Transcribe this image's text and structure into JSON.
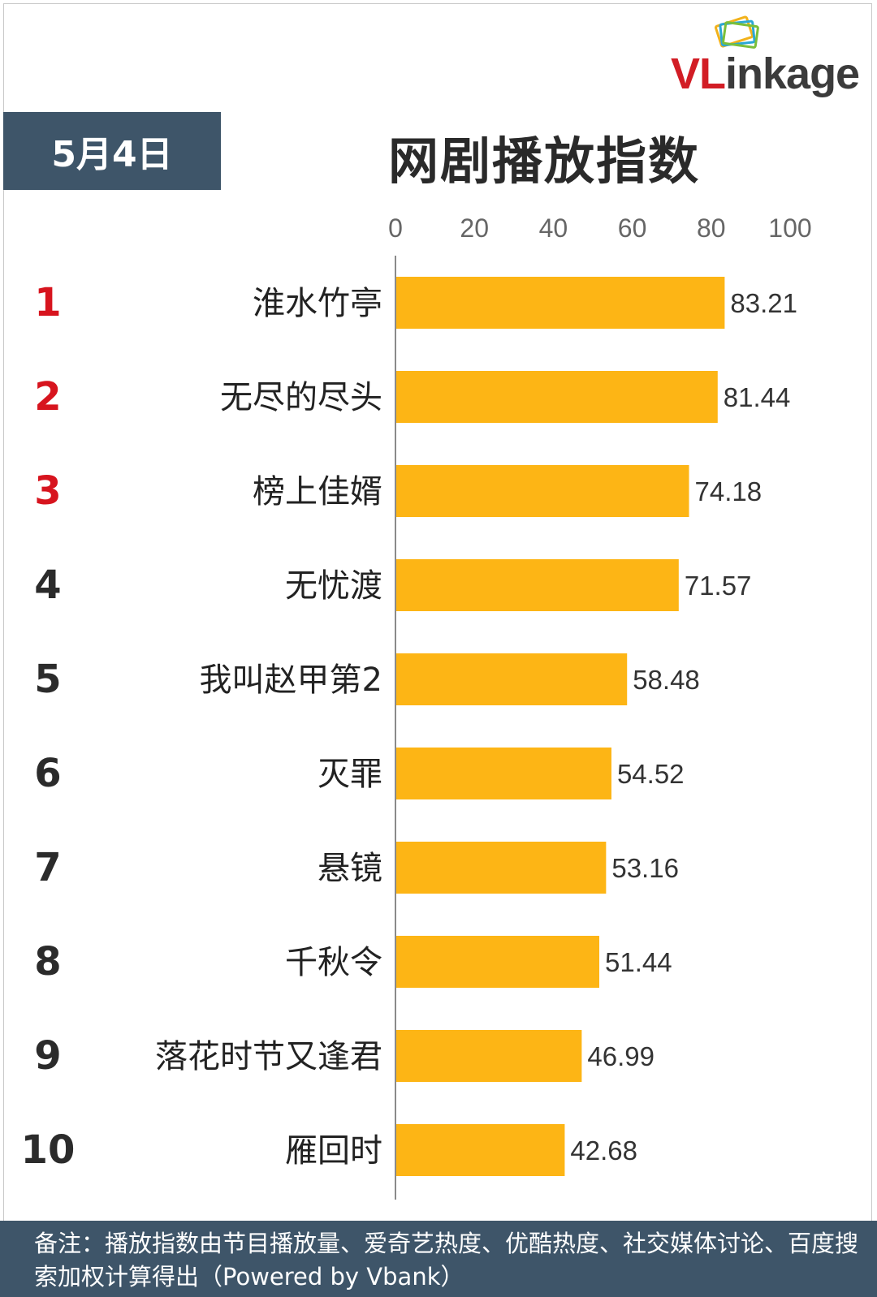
{
  "header": {
    "logo_text_red": "VL",
    "logo_text_dark": "inkage",
    "date": "5月4日",
    "title": "网剧播放指数"
  },
  "footer": {
    "note": "备注：播放指数由节目播放量、爱奇艺热度、优酷热度、社交媒体讨论、百度搜索加权计算得出（Powered by Vbank）"
  },
  "colors": {
    "bar": "#FDB515",
    "rank_top": "#D7141E",
    "rank_other": "#2B2B2B",
    "header_bg": "#3E5569"
  },
  "chart_data": {
    "type": "bar",
    "orientation": "horizontal",
    "title": "网剧播放指数",
    "xlim": [
      0,
      100
    ],
    "x_ticks": [
      "0",
      "20",
      "40",
      "60",
      "80",
      "100"
    ],
    "ranks": [
      "1",
      "2",
      "3",
      "4",
      "5",
      "6",
      "7",
      "8",
      "9",
      "10"
    ],
    "categories": [
      "淮水竹亭",
      "无尽的尽头",
      "榜上佳婿",
      "无忧渡",
      "我叫赵甲第2",
      "灭罪",
      "悬镜",
      "千秋令",
      "落花时节又逢君",
      "雁回时"
    ],
    "values": [
      83.21,
      81.44,
      74.18,
      71.57,
      58.48,
      54.52,
      53.16,
      51.44,
      46.99,
      42.68
    ],
    "value_labels": [
      "83.21",
      "81.44",
      "74.18",
      "71.57",
      "58.48",
      "54.52",
      "53.16",
      "51.44",
      "46.99",
      "42.68"
    ]
  }
}
